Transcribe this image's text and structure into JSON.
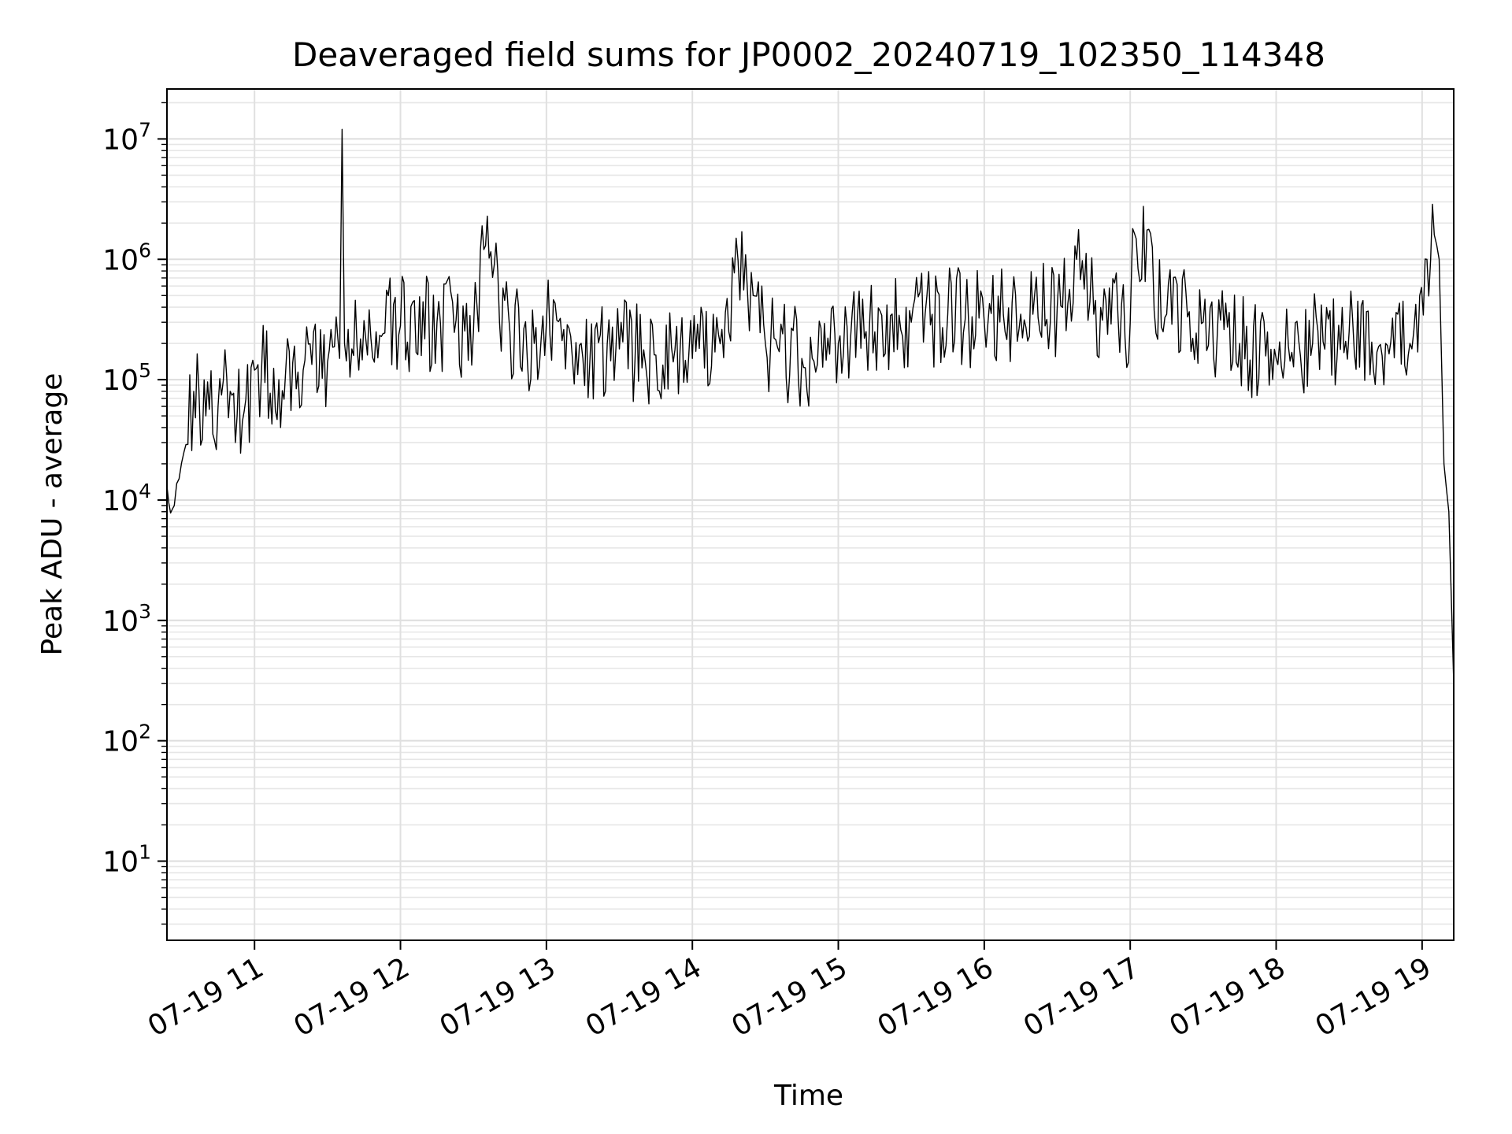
{
  "chart_data": {
    "type": "line",
    "title": "Deaveraged field sums for JP0002_20240719_102350_114348",
    "xlabel": "Time",
    "ylabel": "Peak ADU - average",
    "x_ticks": [
      "07-19 11",
      "07-19 12",
      "07-19 13",
      "07-19 14",
      "07-19 15",
      "07-19 16",
      "07-19 17",
      "07-19 18",
      "07-19 19"
    ],
    "y_ticks": [
      {
        "base": "10",
        "exp": "1"
      },
      {
        "base": "10",
        "exp": "2"
      },
      {
        "base": "10",
        "exp": "3"
      },
      {
        "base": "10",
        "exp": "4"
      },
      {
        "base": "10",
        "exp": "5"
      },
      {
        "base": "10",
        "exp": "6"
      },
      {
        "base": "10",
        "exp": "7"
      }
    ],
    "xlim": [
      "2024-07-19 10:24",
      "2024-07-19 19:13"
    ],
    "ylim": [
      2.2,
      26000000
    ],
    "yscale": "log",
    "grid": true,
    "line_color": "#000000",
    "series": [
      {
        "x": [
          "2024-07-19 10:24",
          "2024-07-19 10:27",
          "2024-07-19 10:29",
          "2024-07-19 10:31",
          "2024-07-19 10:35",
          "2024-07-19 10:40",
          "2024-07-19 10:45",
          "2024-07-19 10:50",
          "2024-07-19 10:55",
          "2024-07-19 11:00",
          "2024-07-19 11:10",
          "2024-07-19 11:20",
          "2024-07-19 11:30",
          "2024-07-19 11:35",
          "2024-07-19 11:36",
          "2024-07-19 11:37",
          "2024-07-19 11:40",
          "2024-07-19 11:50",
          "2024-07-19 12:00",
          "2024-07-19 12:15",
          "2024-07-19 12:30",
          "2024-07-19 12:35",
          "2024-07-19 12:45",
          "2024-07-19 12:55",
          "2024-07-19 13:00",
          "2024-07-19 13:15",
          "2024-07-19 13:30",
          "2024-07-19 13:45",
          "2024-07-19 14:00",
          "2024-07-19 14:15",
          "2024-07-19 14:18",
          "2024-07-19 14:25",
          "2024-07-19 14:30",
          "2024-07-19 14:45",
          "2024-07-19 15:00",
          "2024-07-19 15:15",
          "2024-07-19 15:30",
          "2024-07-19 15:45",
          "2024-07-19 16:00",
          "2024-07-19 16:15",
          "2024-07-19 16:30",
          "2024-07-19 16:38",
          "2024-07-19 16:45",
          "2024-07-19 17:00",
          "2024-07-19 17:01",
          "2024-07-19 17:15",
          "2024-07-19 17:30",
          "2024-07-19 17:45",
          "2024-07-19 18:00",
          "2024-07-19 18:15",
          "2024-07-19 18:30",
          "2024-07-19 18:45",
          "2024-07-19 18:55",
          "2024-07-19 18:59",
          "2024-07-19 19:02",
          "2024-07-19 19:05",
          "2024-07-19 19:07",
          "2024-07-19 19:09",
          "2024-07-19 19:11",
          "2024-07-19 19:13"
        ],
        "y": [
          13000,
          9000,
          15000,
          25000,
          80000,
          50000,
          60000,
          80000,
          45000,
          120000,
          100000,
          120000,
          140000,
          150000,
          12000000,
          200000,
          180000,
          250000,
          280000,
          300000,
          250000,
          1300000,
          250000,
          200000,
          300000,
          150000,
          180000,
          160000,
          150000,
          250000,
          1500000,
          500000,
          200000,
          150000,
          200000,
          250000,
          300000,
          350000,
          300000,
          350000,
          400000,
          1000000,
          350000,
          300000,
          1800000,
          350000,
          300000,
          200000,
          150000,
          200000,
          250000,
          200000,
          200000,
          500000,
          1000000,
          1600000,
          1000000,
          20000,
          8000,
          300
        ]
      }
    ]
  }
}
